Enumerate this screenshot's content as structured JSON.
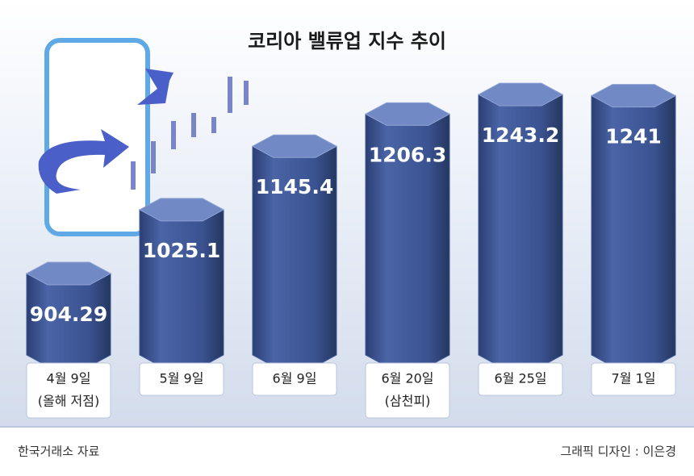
{
  "chart_data": {
    "type": "bar",
    "title": "코리아 밸류업 지수 추이",
    "categories": [
      "4월 9일",
      "5월 9일",
      "6월 9일",
      "6월 20일",
      "6월 25일",
      "7월 1일"
    ],
    "category_notes": [
      "(올해 저점)",
      null,
      null,
      "(삼천피)",
      null,
      null
    ],
    "values": [
      904.29,
      1025.1,
      1145.4,
      1206.3,
      1243.2,
      1241
    ],
    "color": "#3f5796",
    "ylim": [
      750,
      1300
    ],
    "source": "한국거래소 자료",
    "credit": "그래픽 디자인 : 이은경"
  }
}
